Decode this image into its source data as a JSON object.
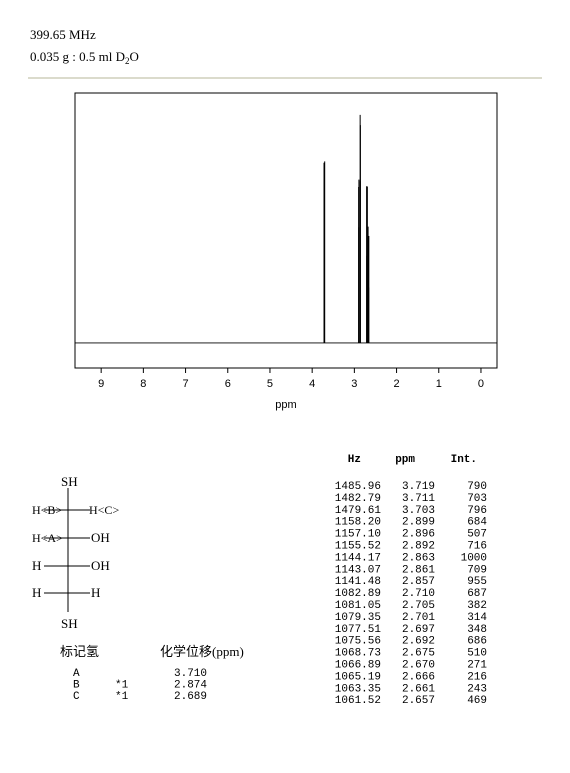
{
  "header": {
    "frequency": "399.65 MHz",
    "sample": {
      "text": "0.035 g : 0.5 ml D",
      "subscript": "2",
      "tail": "O"
    }
  },
  "chart_data": {
    "type": "spectrum",
    "x_label": "ppm",
    "xlim": [
      9.62,
      -0.38
    ],
    "xticks": [
      9,
      8,
      7,
      6,
      5,
      4,
      3,
      2,
      1,
      0
    ],
    "ylim": [
      -110,
      1096
    ],
    "color": "#000000"
  },
  "peaks": {
    "header": [
      "Hz",
      "ppm",
      "Int."
    ],
    "rows": [
      [
        "1485.96",
        "3.719",
        "790"
      ],
      [
        "1482.79",
        "3.711",
        "703"
      ],
      [
        "1479.61",
        "3.703",
        "796"
      ],
      [
        "1158.20",
        "2.899",
        "684"
      ],
      [
        "1157.10",
        "2.896",
        "507"
      ],
      [
        "1155.52",
        "2.892",
        "716"
      ],
      [
        "1144.17",
        "2.863",
        "1000"
      ],
      [
        "1143.07",
        "2.861",
        "709"
      ],
      [
        "1141.48",
        "2.857",
        "955"
      ],
      [
        "1082.89",
        "2.710",
        "687"
      ],
      [
        "1081.05",
        "2.705",
        "382"
      ],
      [
        "1079.35",
        "2.701",
        "314"
      ],
      [
        "1077.51",
        "2.697",
        "348"
      ],
      [
        "1075.56",
        "2.692",
        "686"
      ],
      [
        "1068.73",
        "2.675",
        "510"
      ],
      [
        "1066.89",
        "2.670",
        "271"
      ],
      [
        "1065.19",
        "2.666",
        "216"
      ],
      [
        "1063.35",
        "2.661",
        "243"
      ],
      [
        "1061.52",
        "2.657",
        "469"
      ]
    ]
  },
  "structure": {
    "top": "SH",
    "row1_left": "H<B>",
    "row1_right": "H<C>",
    "row2_left": "H<A>",
    "row2_right": "OH",
    "row3_left": "H",
    "row3_right": "OH",
    "row4_left": "H",
    "row4_right": "H",
    "bottom": "SH"
  },
  "assignments": {
    "header": [
      "标记氢",
      "化学位移(ppm)"
    ],
    "rows": [
      {
        "label": "A",
        "shift": "3.710"
      },
      {
        "label": "B",
        "note": "*1",
        "shift": "2.874"
      },
      {
        "label": "C",
        "note": "*1",
        "shift": "2.689"
      }
    ]
  }
}
